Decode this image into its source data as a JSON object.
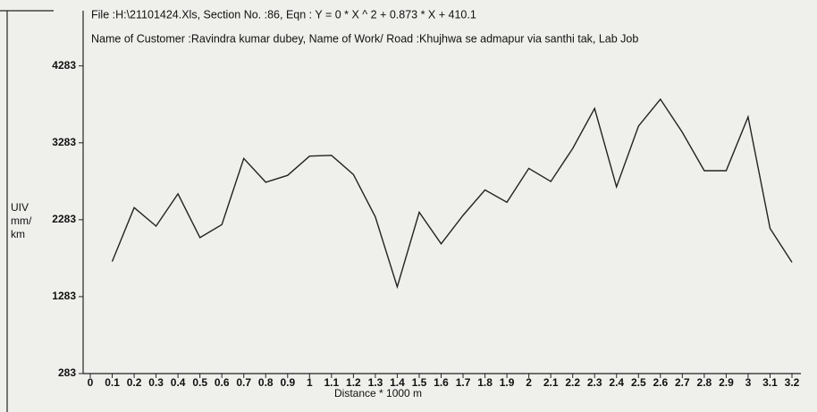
{
  "chart_data": {
    "type": "line",
    "title": "File :H:\\21101424.Xls,   Section No. :86,   Eqn : Y = 0 * X ^ 2 + 0.873 * X + 410.1",
    "subtitle": "Name of Customer :Ravindra kumar dubey,  Name of Work/ Road :Khujhwa se admapur via santhi tak,  Lab Job",
    "ylabel": [
      "UIV",
      "mm/",
      "km"
    ],
    "xlabel": "Distance * 1000 m",
    "x": [
      0.1,
      0.2,
      0.3,
      0.4,
      0.5,
      0.6,
      0.7,
      0.8,
      0.9,
      1,
      1.1,
      1.2,
      1.3,
      1.4,
      1.5,
      1.6,
      1.7,
      1.8,
      1.9,
      2,
      2.1,
      2.2,
      2.3,
      2.4,
      2.5,
      2.6,
      2.7,
      2.8,
      2.9,
      3,
      3.1,
      3.2
    ],
    "values": [
      1740,
      2440,
      2200,
      2620,
      2050,
      2220,
      3080,
      2770,
      2860,
      3110,
      3120,
      2870,
      2320,
      1410,
      2380,
      1970,
      2340,
      2670,
      2510,
      2950,
      2780,
      3210,
      3730,
      2710,
      3500,
      3850,
      3420,
      2920,
      2920,
      3620,
      2170,
      1730
    ],
    "color": "#222222",
    "xlim": [
      0,
      3.2
    ],
    "xticks": [
      0,
      0.1,
      0.2,
      0.3,
      0.4,
      0.5,
      0.6,
      0.7,
      0.8,
      0.9,
      1,
      1.1,
      1.2,
      1.3,
      1.4,
      1.5,
      1.6,
      1.7,
      1.8,
      1.9,
      2,
      2.1,
      2.2,
      2.3,
      2.4,
      2.5,
      2.6,
      2.7,
      2.8,
      2.9,
      3,
      3.1,
      3.2
    ],
    "ylim": [
      283,
      5000
    ],
    "yticks": [
      283,
      1283,
      2283,
      3283,
      4283
    ],
    "grid": false
  }
}
